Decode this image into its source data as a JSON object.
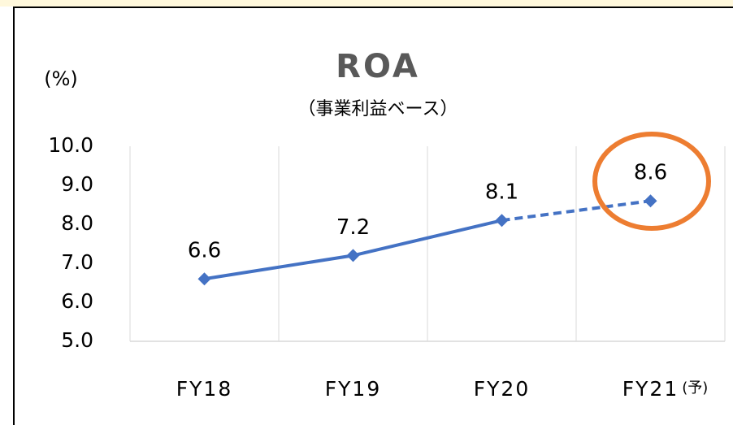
{
  "chart_data": {
    "type": "line",
    "title": "ROA",
    "subtitle": "（事業利益ベース）",
    "y_label": "(%)",
    "categories": [
      "FY18",
      "FY19",
      "FY20",
      "FY21"
    ],
    "forecast_label": "(予)",
    "forecast": [
      false,
      false,
      false,
      true
    ],
    "series": [
      {
        "name": "ROA",
        "color": "#4472c4",
        "values": [
          6.6,
          7.2,
          8.1,
          8.6
        ]
      }
    ],
    "ylim": [
      5,
      10
    ],
    "yticks": [
      {
        "value": 5,
        "label": "5.0"
      },
      {
        "value": 6,
        "label": "6.0"
      },
      {
        "value": 7,
        "label": "7.0"
      },
      {
        "value": 8,
        "label": "8.0"
      },
      {
        "value": 9,
        "label": "9.0"
      },
      {
        "value": 10,
        "label": "10.0"
      }
    ],
    "grid": false
  }
}
